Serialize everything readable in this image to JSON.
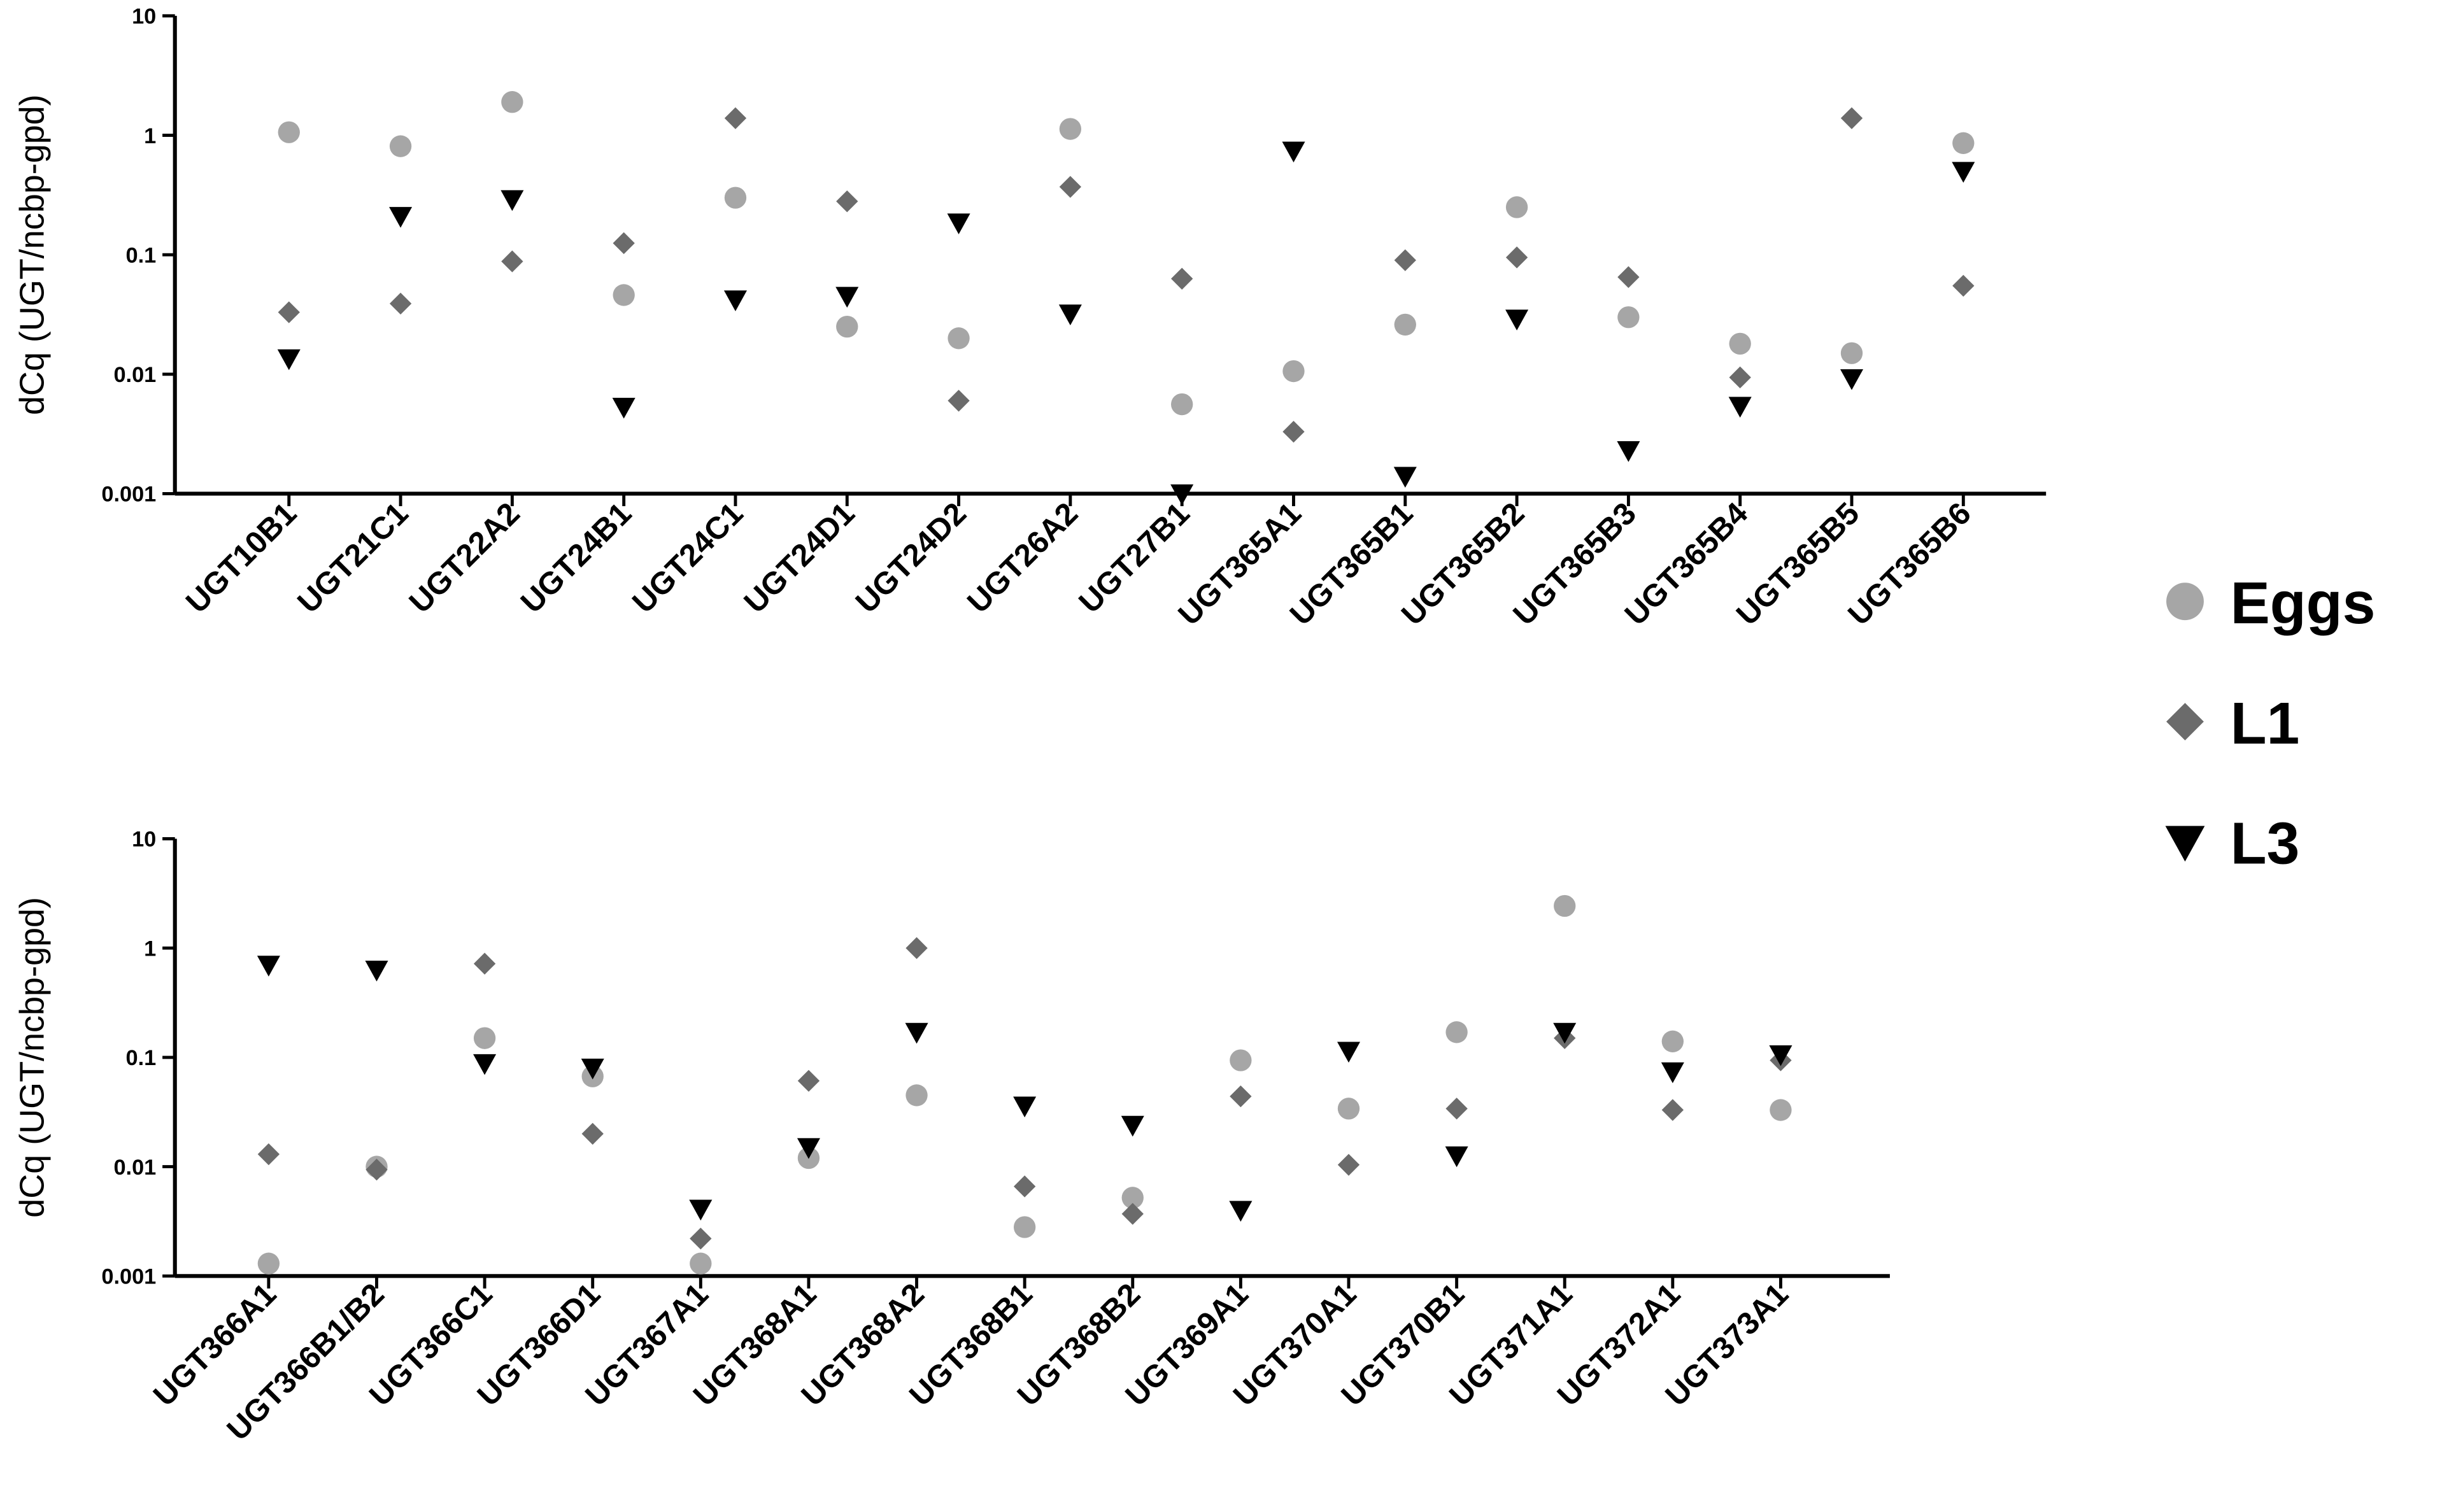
{
  "chart_data": [
    {
      "type": "scatter",
      "y_label": "dCq (UGT/ncbp-gpd)",
      "log_scale": true,
      "ylim": [
        0.001,
        10
      ],
      "yticks": [
        0.001,
        0.01,
        0.1,
        1,
        10
      ],
      "categories": [
        "UGT10B1",
        "UGT21C1",
        "UGT22A2",
        "UGT24B1",
        "UGT24C1",
        "UGT24D1",
        "UGT24D2",
        "UGT26A2",
        "UGT27B1",
        "UGT365A1",
        "UGT365B1",
        "UGT365B2",
        "UGT365B3",
        "UGT365B4",
        "UGT365B5",
        "UGT365B6"
      ],
      "legend": "right",
      "series": [
        {
          "name": "Eggs",
          "color": "#a6a6a6",
          "marker": "circle",
          "values": [
            1.06,
            0.81,
            1.9,
            0.046,
            0.3,
            0.025,
            0.02,
            1.13,
            0.0056,
            0.0106,
            0.026,
            0.25,
            0.03,
            0.018,
            0.015,
            0.86
          ]
        },
        {
          "name": "L1",
          "color": "#6b6b6b",
          "marker": "diamond",
          "values": [
            0.033,
            0.039,
            0.088,
            0.125,
            1.39,
            0.28,
            0.006,
            0.37,
            0.063,
            0.0033,
            0.09,
            0.095,
            0.065,
            0.0094,
            1.39,
            0.055
          ]
        },
        {
          "name": "L3",
          "color": "#000000",
          "marker": "triangle-down",
          "values": [
            0.0135,
            0.21,
            0.29,
            0.0053,
            0.042,
            0.045,
            0.185,
            0.032,
            0.001,
            0.74,
            0.0014,
            0.029,
            0.0023,
            0.0054,
            0.0092,
            0.5
          ]
        }
      ]
    },
    {
      "type": "scatter",
      "y_label": "dCq (UGT/ncbp-gpd)",
      "log_scale": true,
      "ylim": [
        0.001,
        10
      ],
      "yticks": [
        0.001,
        0.01,
        0.1,
        1,
        10
      ],
      "categories": [
        "UGT366A1",
        "UGT366B1/B2",
        "UGT366C1",
        "UGT366D1",
        "UGT367A1",
        "UGT368A1",
        "UGT368A2",
        "UGT368B1",
        "UGT368B2",
        "UGT369A1",
        "UGT370A1",
        "UGT370B1",
        "UGT371A1",
        "UGT372A1",
        "UGT373A1"
      ],
      "series": [
        {
          "color": "#a6a6a6",
          "marker": "circle",
          "values": [
            0.0013,
            0.01,
            0.15,
            0.067,
            0.0013,
            0.012,
            0.045,
            0.0028,
            0.0052,
            0.094,
            0.034,
            0.17,
            2.43,
            0.14,
            0.033
          ]
        },
        {
          "color": "#6b6b6b",
          "marker": "diamond",
          "values": [
            0.013,
            0.0094,
            0.72,
            0.02,
            0.0022,
            0.061,
            1.0,
            0.0066,
            0.0037,
            0.044,
            0.0104,
            0.034,
            0.15,
            0.033,
            0.094
          ]
        },
        {
          "color": "#000000",
          "marker": "triangle-down",
          "values": [
            0.7,
            0.63,
            0.088,
            0.08,
            0.0041,
            0.015,
            0.17,
            0.036,
            0.024,
            0.004,
            0.114,
            0.0126,
            0.17,
            0.074,
            0.106
          ]
        }
      ]
    }
  ]
}
